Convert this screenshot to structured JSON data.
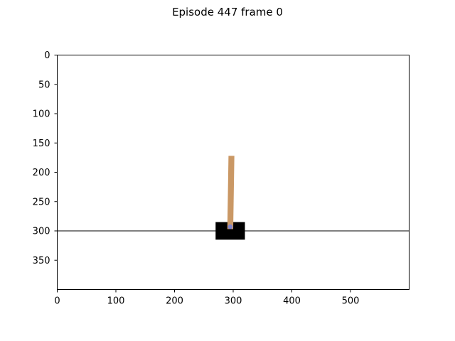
{
  "figure": {
    "title": "Episode 447 frame 0"
  },
  "scene": {
    "type": "cartpole-render",
    "frame_width": 600,
    "frame_height": 400,
    "track_y": 300,
    "cart": {
      "x_left": 270,
      "x_right": 320,
      "y_top": 285,
      "y_bottom": 315
    },
    "pole": {
      "x_left": 290,
      "x_right": 300,
      "y_top": 172,
      "y_bottom": 297,
      "tilt_dx": 2
    },
    "axle": {
      "x": 295,
      "y": 293
    },
    "colors": {
      "background": "#ffffff",
      "track": "#000000",
      "cart": "#000000",
      "pole": "#ca9865",
      "axle": "#8184cb"
    }
  },
  "axes": {
    "x_ticks": [
      "0",
      "100",
      "200",
      "300",
      "400",
      "500"
    ],
    "x_tick_values": [
      0,
      100,
      200,
      300,
      400,
      500
    ],
    "y_ticks": [
      "0",
      "50",
      "100",
      "150",
      "200",
      "250",
      "300",
      "350"
    ],
    "y_tick_values": [
      0,
      50,
      100,
      150,
      200,
      250,
      300,
      350
    ]
  }
}
